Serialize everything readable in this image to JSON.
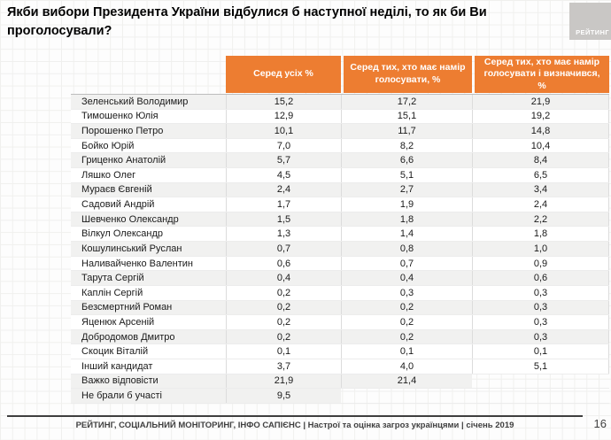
{
  "slide": {
    "title": "Якби вибори Президента України відбулися б наступної неділі, то як би Ви проголосували?",
    "logo_text": "РЕЙТИНГ",
    "footer": "РЕЙТИНГ, СОЦІАЛЬНИЙ МОНІТОРИНГ, ІНФО САПІЄНС | Настрої та оцінка загроз українцями | січень 2019",
    "page_number": "16"
  },
  "colors": {
    "accent_orange": "#ed7d31",
    "logo_gray": "#c9c7c5",
    "row_shade": "#f1f1f0"
  },
  "chart_data": {
    "type": "table",
    "title": "Якби вибори Президента України відбулися б наступної неділі, то як би Ви проголосували?",
    "columns": [
      "Серед усіх %",
      "Серед тих, хто має намір голосувати, %",
      "Серед тих, хто має намір голосувати і визначився, %"
    ],
    "rows": [
      {
        "name": "Зеленський Володимир",
        "values": [
          "15,2",
          "17,2",
          "21,9"
        ]
      },
      {
        "name": "Тимошенко Юлія",
        "values": [
          "12,9",
          "15,1",
          "19,2"
        ]
      },
      {
        "name": "Порошенко Петро",
        "values": [
          "10,1",
          "11,7",
          "14,8"
        ]
      },
      {
        "name": "Бойко Юрій",
        "values": [
          "7,0",
          "8,2",
          "10,4"
        ]
      },
      {
        "name": "Гриценко Анатолій",
        "values": [
          "5,7",
          "6,6",
          "8,4"
        ]
      },
      {
        "name": "Ляшко Олег",
        "values": [
          "4,5",
          "5,1",
          "6,5"
        ]
      },
      {
        "name": "Мураєв Євгеній",
        "values": [
          "2,4",
          "2,7",
          "3,4"
        ]
      },
      {
        "name": "Садовий Андрій",
        "values": [
          "1,7",
          "1,9",
          "2,4"
        ]
      },
      {
        "name": "Шевченко Олександр",
        "values": [
          "1,5",
          "1,8",
          "2,2"
        ]
      },
      {
        "name": "Вілкул Олександр",
        "values": [
          "1,3",
          "1,4",
          "1,8"
        ]
      },
      {
        "name": "Кошулинський Руслан",
        "values": [
          "0,7",
          "0,8",
          "1,0"
        ]
      },
      {
        "name": "Наливайченко Валентин",
        "values": [
          "0,6",
          "0,7",
          "0,9"
        ]
      },
      {
        "name": "Тарута Сергій",
        "values": [
          "0,4",
          "0,4",
          "0,6"
        ]
      },
      {
        "name": "Каплін Сергій",
        "values": [
          "0,2",
          "0,3",
          "0,3"
        ]
      },
      {
        "name": "Безсмертний Роман",
        "values": [
          "0,2",
          "0,2",
          "0,3"
        ]
      },
      {
        "name": "Яценюк Арсеній",
        "values": [
          "0,2",
          "0,2",
          "0,3"
        ]
      },
      {
        "name": "Добродомов Дмитро",
        "values": [
          "0,2",
          "0,2",
          "0,3"
        ]
      },
      {
        "name": "Скоцик Віталій",
        "values": [
          "0,1",
          "0,1",
          "0,1"
        ]
      },
      {
        "name": "Інший кандидат",
        "values": [
          "3,7",
          "4,0",
          "5,1"
        ]
      },
      {
        "name": "Важко відповісти",
        "values": [
          "21,9",
          "21,4",
          ""
        ]
      },
      {
        "name": "Не брали б участі",
        "values": [
          "9,5",
          "",
          ""
        ]
      }
    ]
  }
}
